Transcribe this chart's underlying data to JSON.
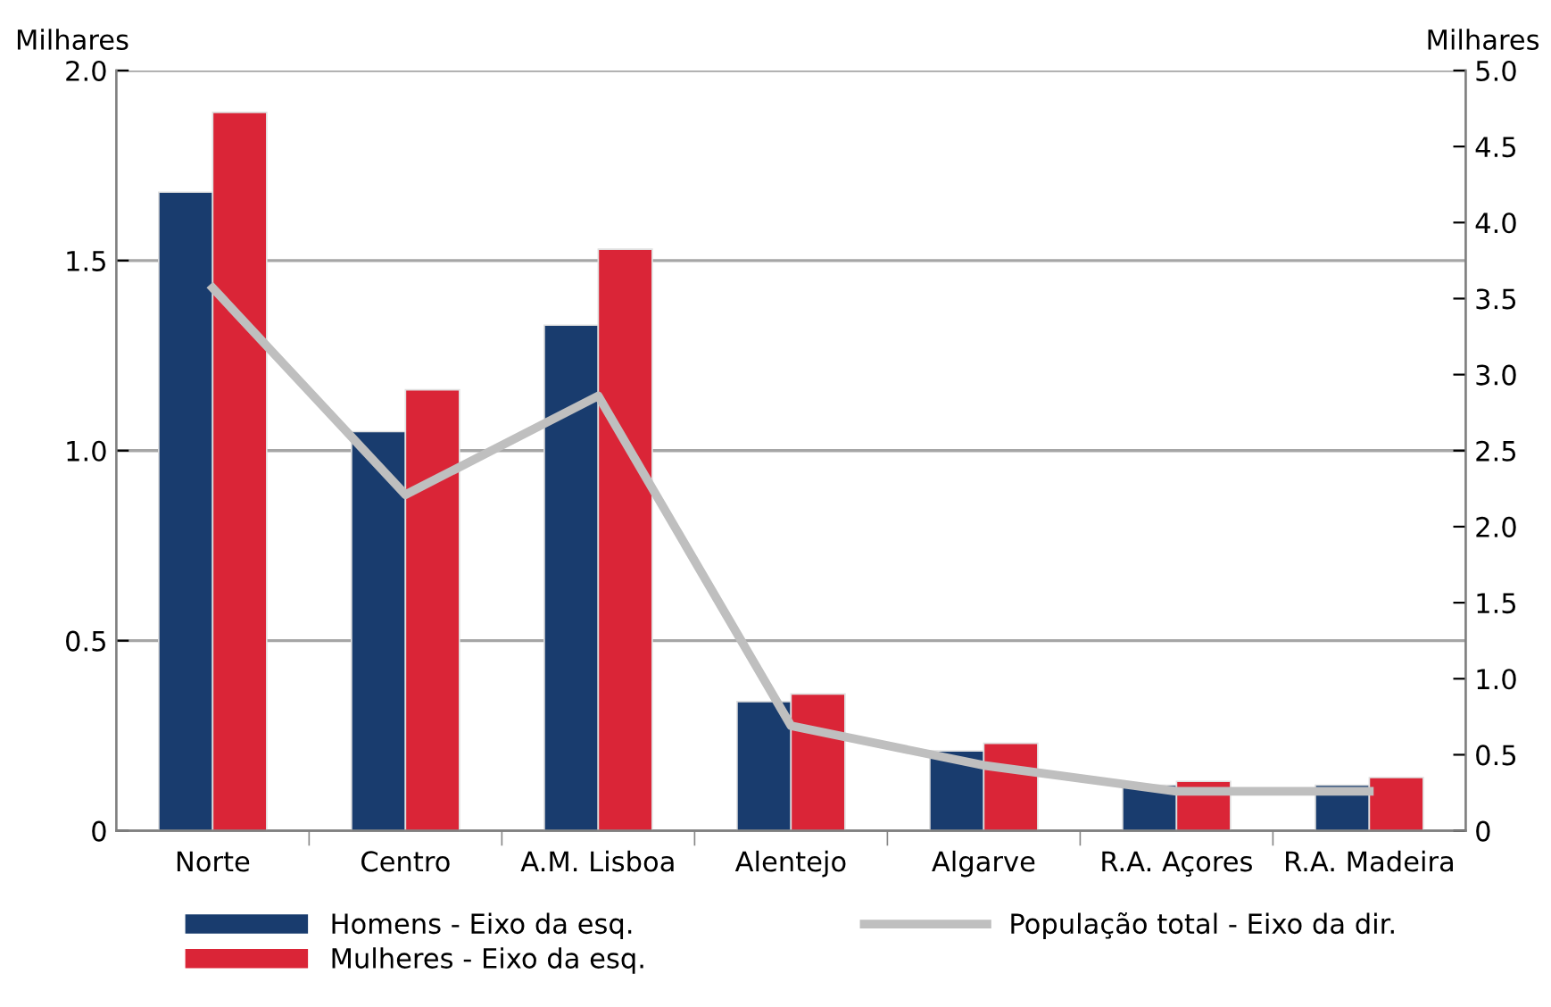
{
  "chart_data": {
    "type": "bar",
    "categories": [
      "Norte",
      "Centro",
      "A.M. Lisboa",
      "Alentejo",
      "Algarve",
      "R.A. Açores",
      "R.A. Madeira"
    ],
    "series": [
      {
        "name": "Homens - Eixo da esq.",
        "color": "#193c6e",
        "values": [
          1.68,
          1.05,
          1.33,
          0.34,
          0.21,
          0.12,
          0.12
        ]
      },
      {
        "name": "Mulheres - Eixo da esq.",
        "color": "#da2537",
        "values": [
          1.89,
          1.16,
          1.53,
          0.36,
          0.23,
          0.13,
          0.14
        ]
      },
      {
        "name": "População total - Eixo da dir.",
        "color": "#bfbfbf",
        "type": "line",
        "axis": "y2",
        "values": [
          3.57,
          2.21,
          2.86,
          0.69,
          0.43,
          0.26,
          0.26
        ]
      }
    ],
    "ylabel": "Milhares",
    "y2label": "Milhares",
    "ylim": [
      0,
      2.0
    ],
    "yticks": [
      {
        "value": 0,
        "label": "0"
      },
      {
        "value": 0.5,
        "label": "0.5"
      },
      {
        "value": 1.0,
        "label": "1.0"
      },
      {
        "value": 1.5,
        "label": "1.5"
      },
      {
        "value": 2.0,
        "label": "2.0"
      }
    ],
    "y2lim": [
      0,
      5.0
    ],
    "y2ticks": [
      {
        "value": 0,
        "label": "0"
      },
      {
        "value": 0.5,
        "label": "0.5"
      },
      {
        "value": 1.0,
        "label": "1.0"
      },
      {
        "value": 1.5,
        "label": "1.5"
      },
      {
        "value": 2.0,
        "label": "2.0"
      },
      {
        "value": 2.5,
        "label": "2.5"
      },
      {
        "value": 3.0,
        "label": "3.0"
      },
      {
        "value": 3.5,
        "label": "3.5"
      },
      {
        "value": 4.0,
        "label": "4.0"
      },
      {
        "value": 4.5,
        "label": "4.5"
      },
      {
        "value": 5.0,
        "label": "5.0"
      }
    ],
    "grid": "y",
    "legend": "bottom",
    "marker": "none",
    "line_style": "solid"
  }
}
